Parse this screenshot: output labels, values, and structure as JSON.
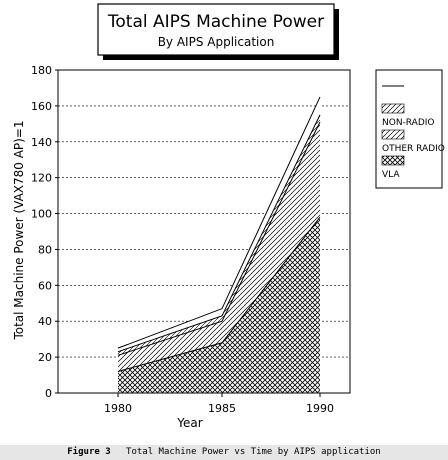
{
  "chart_data": {
    "type": "area",
    "title": "Total AIPS Machine Power",
    "subtitle": "By AIPS Application",
    "xlabel": "Year",
    "ylabel": "Total Machine  Power  (VAX780 AP)=1",
    "x": [
      "1980",
      "1985",
      "1990"
    ],
    "xtick_labels": [
      "1980",
      "1985",
      "1990"
    ],
    "ytick_labels": [
      "0",
      "20",
      "40",
      "60",
      "80",
      "100",
      "120",
      "140",
      "160",
      "180"
    ],
    "ylim": [
      0,
      180
    ],
    "stacked": true,
    "grid": true,
    "legend_position": "right",
    "series": [
      {
        "name": "VLA",
        "values": [
          12,
          28,
          98
        ],
        "fill": "crosshatch"
      },
      {
        "name": "OTHER RADIO",
        "values": [
          9,
          12,
          53
        ],
        "fill": "diagonal"
      },
      {
        "name": "NON-RADIO",
        "values": [
          2,
          3,
          4
        ],
        "fill": "diagonal"
      },
      {
        "name": "",
        "values": [
          2,
          4,
          10
        ],
        "fill": "white"
      }
    ]
  },
  "caption": {
    "label": "Figure 3",
    "text": "Total Machine Power vs Time by AIPS application"
  }
}
